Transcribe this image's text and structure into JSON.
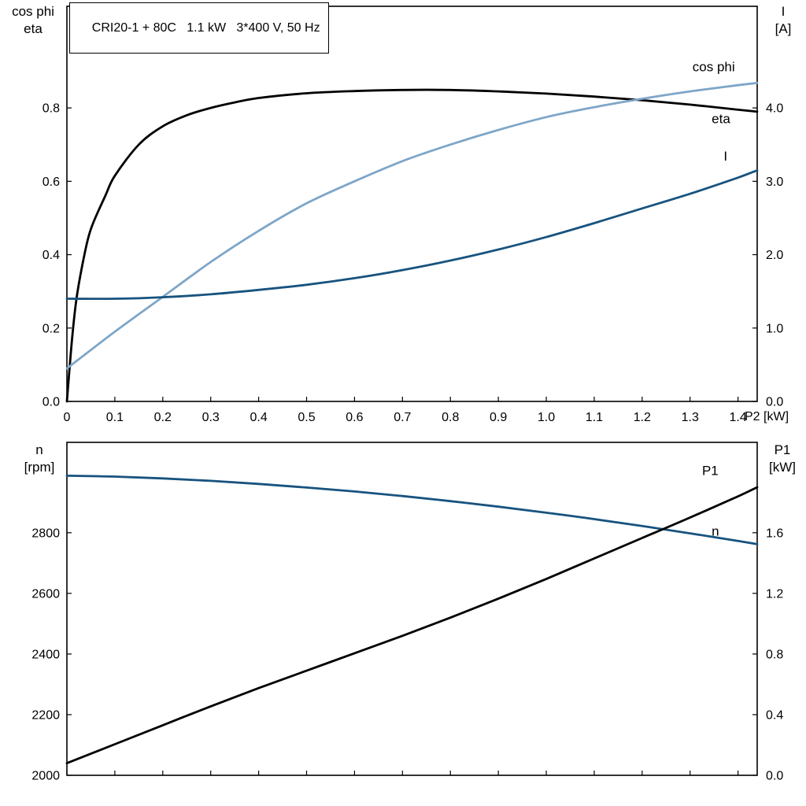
{
  "title": "CRI20-1 + 80C   1.1 kW   3*400 V, 50 Hz",
  "colors": {
    "black": "#000000",
    "light_blue": "#7ea6c8",
    "dark_blue": "#17537f"
  },
  "chart_data": [
    {
      "type": "line",
      "title": "CRI20-1 + 80C   1.1 kW   3*400 V, 50 Hz",
      "x_label": "P2 [kW]",
      "x_range": [
        0,
        1.44
      ],
      "x_tick_values": [
        0,
        0.1,
        0.2,
        0.3,
        0.4,
        0.5,
        0.6,
        0.7,
        0.8,
        0.9,
        1.0,
        1.1,
        1.2,
        1.3,
        1.4
      ],
      "x_tick_labels": [
        "0",
        "0.1",
        "0.2",
        "0.3",
        "0.4",
        "0.5",
        "0.6",
        "0.7",
        "0.8",
        "0.9",
        "1.0",
        "1.1",
        "1.2",
        "1.3",
        "1.4"
      ],
      "left_axis": {
        "title_lines": [
          "cos phi",
          "eta"
        ],
        "range": [
          0,
          1.077
        ],
        "tick_values": [
          0.0,
          0.2,
          0.4,
          0.6,
          0.8
        ],
        "tick_labels": [
          "0.0",
          "0.2",
          "0.4",
          "0.6",
          "0.8"
        ]
      },
      "right_axis": {
        "title_lines": [
          "I",
          "[A]"
        ],
        "range": [
          0,
          5.385
        ],
        "tick_values": [
          0.0,
          1.0,
          2.0,
          3.0,
          4.0
        ],
        "tick_labels": [
          "0.0",
          "1.0",
          "2.0",
          "3.0",
          "4.0"
        ]
      },
      "series": [
        {
          "name": "eta",
          "axis": "left",
          "color": "#000000",
          "x": [
            0,
            0.01,
            0.02,
            0.035,
            0.05,
            0.08,
            0.1,
            0.15,
            0.2,
            0.25,
            0.3,
            0.35,
            0.4,
            0.5,
            0.6,
            0.7,
            0.8,
            0.9,
            1.0,
            1.1,
            1.2,
            1.3,
            1.4,
            1.44
          ],
          "y": [
            0,
            0.16,
            0.28,
            0.39,
            0.47,
            0.56,
            0.615,
            0.7,
            0.75,
            0.78,
            0.8,
            0.815,
            0.827,
            0.84,
            0.846,
            0.849,
            0.849,
            0.845,
            0.839,
            0.831,
            0.821,
            0.809,
            0.795,
            0.79
          ]
        },
        {
          "name": "cos phi",
          "axis": "left",
          "color": "#7ea6c8",
          "x": [
            0,
            0.1,
            0.2,
            0.3,
            0.4,
            0.5,
            0.6,
            0.7,
            0.8,
            0.9,
            1.0,
            1.1,
            1.2,
            1.3,
            1.4,
            1.44
          ],
          "y": [
            0.09,
            0.19,
            0.285,
            0.38,
            0.465,
            0.54,
            0.6,
            0.655,
            0.7,
            0.74,
            0.775,
            0.802,
            0.825,
            0.845,
            0.862,
            0.868
          ]
        },
        {
          "name": "I",
          "axis": "right",
          "color": "#17537f",
          "x": [
            0,
            0.1,
            0.2,
            0.3,
            0.4,
            0.5,
            0.6,
            0.7,
            0.8,
            0.9,
            1.0,
            1.1,
            1.2,
            1.3,
            1.4,
            1.44
          ],
          "y": [
            1.4,
            1.4,
            1.42,
            1.46,
            1.52,
            1.59,
            1.68,
            1.79,
            1.92,
            2.07,
            2.24,
            2.43,
            2.63,
            2.83,
            3.05,
            3.15
          ]
        }
      ],
      "curve_labels": [
        {
          "text": "cos phi",
          "axis": "left",
          "x": 1.305,
          "y": 0.9,
          "color": "#7ea6c8"
        },
        {
          "text": "eta",
          "axis": "left",
          "x": 1.345,
          "y": 0.758,
          "color": "#000000"
        },
        {
          "text": "I",
          "axis": "right",
          "x": 1.37,
          "y": 3.28,
          "color": "#17537f"
        }
      ]
    },
    {
      "type": "line",
      "x_label": "",
      "x_range": [
        0,
        1.44
      ],
      "x_tick_values": [
        0,
        0.1,
        0.2,
        0.3,
        0.4,
        0.5,
        0.6,
        0.7,
        0.8,
        0.9,
        1.0,
        1.1,
        1.2,
        1.3,
        1.4
      ],
      "x_tick_labels": [],
      "left_axis": {
        "title_lines": [
          "n",
          "[rpm]"
        ],
        "range": [
          2000,
          3098
        ],
        "tick_values": [
          2000,
          2200,
          2400,
          2600,
          2800
        ],
        "tick_labels": [
          "2000",
          "2200",
          "2400",
          "2600",
          "2800"
        ]
      },
      "right_axis": {
        "title_lines": [
          "P1",
          "[kW]"
        ],
        "range": [
          0,
          2.196
        ],
        "tick_values": [
          0.0,
          0.4,
          0.8,
          1.2,
          1.6
        ],
        "tick_labels": [
          "0.0",
          "0.4",
          "0.8",
          "1.2",
          "1.6"
        ]
      },
      "series": [
        {
          "name": "n",
          "axis": "left",
          "color": "#17537f",
          "x": [
            0,
            0.1,
            0.2,
            0.3,
            0.4,
            0.5,
            0.6,
            0.7,
            0.8,
            0.9,
            1.0,
            1.1,
            1.2,
            1.3,
            1.4,
            1.44
          ],
          "y": [
            2988,
            2985,
            2979,
            2971,
            2961,
            2949,
            2936,
            2921,
            2904,
            2886,
            2866,
            2845,
            2822,
            2798,
            2773,
            2762
          ]
        },
        {
          "name": "P1",
          "axis": "right",
          "color": "#000000",
          "x": [
            0,
            0.1,
            0.2,
            0.3,
            0.4,
            0.5,
            0.6,
            0.7,
            0.8,
            0.9,
            1.0,
            1.1,
            1.2,
            1.3,
            1.4,
            1.44
          ],
          "y": [
            0.08,
            0.205,
            0.33,
            0.455,
            0.575,
            0.69,
            0.805,
            0.92,
            1.04,
            1.165,
            1.295,
            1.43,
            1.565,
            1.7,
            1.84,
            1.9
          ]
        }
      ],
      "curve_labels": [
        {
          "text": "P1",
          "axis": "right",
          "x": 1.325,
          "y": 1.98,
          "color": "#000000"
        },
        {
          "text": "n",
          "axis": "left",
          "x": 1.345,
          "y": 2790,
          "color": "#17537f"
        }
      ]
    }
  ]
}
